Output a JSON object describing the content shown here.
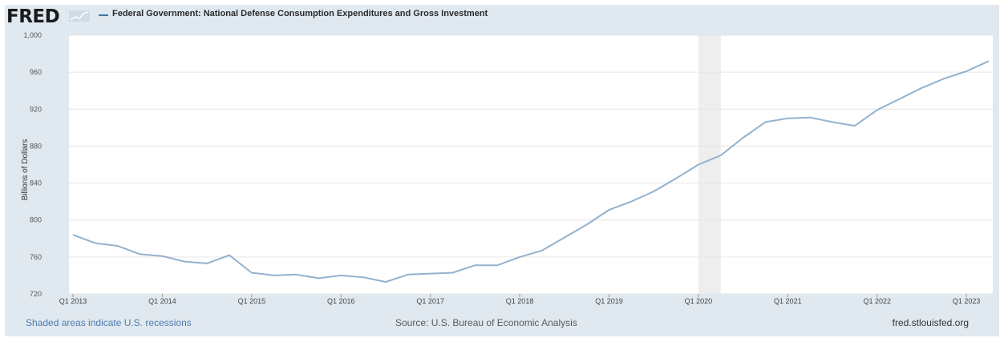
{
  "header": {
    "logo": "FRED",
    "series_title": "Federal Government: National Defense Consumption Expenditures and Gross Investment"
  },
  "footer": {
    "recessions_note": "Shaded areas indicate U.S. recessions",
    "source": "Source: U.S. Bureau of Economic Analysis",
    "site": "fred.stlouisfed.org"
  },
  "colors": {
    "line": "#95b1cc",
    "frame_background": "#e1e9f0",
    "plot_background": "#ffffff",
    "recession_shade": "#eeeeee",
    "link": "#4c7bb0"
  },
  "chart_data": {
    "type": "line",
    "title": "Federal Government: National Defense Consumption Expenditures and Gross Investment",
    "xlabel": "",
    "ylabel": "Billions of Dollars",
    "ylim": [
      720,
      1000
    ],
    "yticks": [
      "720",
      "760",
      "800",
      "840",
      "880",
      "920",
      "960",
      "1,000"
    ],
    "xticks": [
      "Q1 2013",
      "Q1 2014",
      "Q1 2015",
      "Q1 2016",
      "Q1 2017",
      "Q1 2018",
      "Q1 2019",
      "Q1 2020",
      "Q1 2021",
      "Q1 2022",
      "Q1 2023"
    ],
    "grid": true,
    "recessions": [
      {
        "start": "Q1 2020",
        "end": "Q2 2020"
      }
    ],
    "series": [
      {
        "x": [
          "Q1 2013",
          "Q2 2013",
          "Q3 2013",
          "Q4 2013",
          "Q1 2014",
          "Q2 2014",
          "Q3 2014",
          "Q4 2014",
          "Q1 2015",
          "Q2 2015",
          "Q3 2015",
          "Q4 2015",
          "Q1 2016",
          "Q2 2016",
          "Q3 2016",
          "Q4 2016",
          "Q1 2017",
          "Q2 2017",
          "Q3 2017",
          "Q4 2017",
          "Q1 2018",
          "Q2 2018",
          "Q3 2018",
          "Q4 2018",
          "Q1 2019",
          "Q2 2019",
          "Q3 2019",
          "Q4 2019",
          "Q1 2020",
          "Q2 2020",
          "Q3 2020",
          "Q4 2020",
          "Q1 2021",
          "Q2 2021",
          "Q3 2021",
          "Q4 2021",
          "Q1 2022",
          "Q2 2022",
          "Q3 2022",
          "Q4 2022",
          "Q1 2023",
          "Q2 2023"
        ],
        "values": [
          784,
          775,
          772,
          763,
          761,
          755,
          753,
          762,
          743,
          740,
          741,
          737,
          740,
          738,
          733,
          741,
          742,
          743,
          751,
          751,
          760,
          767,
          781,
          795,
          811,
          820,
          831,
          845,
          860,
          870,
          889,
          906,
          910,
          911,
          906,
          902,
          919,
          931,
          943,
          953,
          961,
          972
        ]
      }
    ]
  }
}
